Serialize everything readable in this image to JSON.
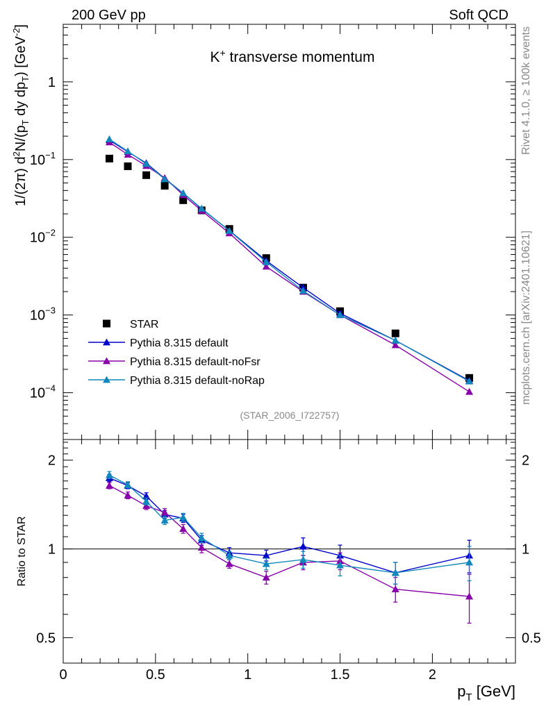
{
  "header": {
    "left": "200 GeV pp",
    "right": "Soft QCD"
  },
  "side_labels": {
    "rivet": "Rivet 4.1.0, ≥ 100k events",
    "mcplots": "mcplots.cern.ch [arXiv:2401.10621]"
  },
  "chart_data": [
    {
      "type": "scatter",
      "panel": "main",
      "title": "K⁺ transverse momentum",
      "xlabel": "",
      "ylabel_parts": {
        "prefix": "1/(2π)",
        "d": "d",
        "two": "2",
        "n_open": "N/(p",
        "t1": "T",
        "mid": " dy dp",
        "t2": "T",
        "close": ") [GeV",
        "minus2": "-2",
        "end": "]"
      },
      "yscale": "log",
      "xlim": [
        0,
        2.45
      ],
      "ylim": [
        2.5e-05,
        5.5
      ],
      "y_ticks": [
        {
          "value": 1,
          "base": "1",
          "exp": ""
        },
        {
          "value": 0.1,
          "base": "10",
          "exp": "−1"
        },
        {
          "value": 0.01,
          "base": "10",
          "exp": "−2"
        },
        {
          "value": 0.001,
          "base": "10",
          "exp": "−3"
        },
        {
          "value": 0.0001,
          "base": "10",
          "exp": "−4"
        }
      ],
      "annotation": "(STAR_2006_I722757)",
      "legend_position": "lower-left",
      "series": [
        {
          "name": "STAR",
          "color": "#000000",
          "marker": "square",
          "line": false,
          "x": [
            0.25,
            0.35,
            0.45,
            0.55,
            0.65,
            0.75,
            0.9,
            1.1,
            1.3,
            1.5,
            1.8,
            2.2
          ],
          "y": [
            0.103,
            0.082,
            0.063,
            0.046,
            0.03,
            0.0222,
            0.0128,
            0.0054,
            0.00225,
            0.00112,
            0.00058,
            0.000155
          ]
        },
        {
          "name": "Pythia 8.315 default",
          "color": "#0000cc",
          "marker": "triangle",
          "line": true,
          "x": [
            0.25,
            0.35,
            0.45,
            0.55,
            0.65,
            0.75,
            0.9,
            1.1,
            1.3,
            1.5,
            1.8,
            2.2
          ],
          "y": [
            0.178,
            0.126,
            0.09,
            0.057,
            0.037,
            0.0232,
            0.0122,
            0.005,
            0.00225,
            0.00105,
            0.00047,
            0.000143
          ]
        },
        {
          "name": "Pythia 8.315 default-noFsr",
          "color": "#8800aa",
          "marker": "triangle",
          "line": true,
          "x": [
            0.25,
            0.35,
            0.45,
            0.55,
            0.65,
            0.75,
            0.9,
            1.1,
            1.3,
            1.5,
            1.8,
            2.2
          ],
          "y": [
            0.167,
            0.116,
            0.083,
            0.058,
            0.035,
            0.022,
            0.0113,
            0.0042,
            0.002,
            0.001,
            0.00041,
            0.000103
          ]
        },
        {
          "name": "Pythia 8.315 default-noRap",
          "color": "#1188bb",
          "marker": "triangle",
          "line": true,
          "x": [
            0.25,
            0.35,
            0.45,
            0.55,
            0.65,
            0.75,
            0.9,
            1.1,
            1.3,
            1.5,
            1.8,
            2.2
          ],
          "y": [
            0.183,
            0.128,
            0.088,
            0.056,
            0.037,
            0.0235,
            0.0121,
            0.0048,
            0.00205,
            0.001,
            0.00047,
            0.00014
          ]
        }
      ]
    },
    {
      "type": "scatter",
      "panel": "ratio",
      "xlabel": "p",
      "xlabel_sub": "T",
      "xlabel_unit": " [GeV]",
      "ylabel": "Ratio to STAR",
      "yscale": "log",
      "xlim": [
        0,
        2.45
      ],
      "ylim": [
        0.41,
        2.35
      ],
      "x_ticks": [
        "0",
        "0.5",
        "1",
        "1.5",
        "2"
      ],
      "y_ticks": [
        "2",
        "1",
        "0.5"
      ],
      "reference_line": 1,
      "series": [
        {
          "name": "Pythia 8.315 default",
          "color": "#0000cc",
          "x": [
            0.25,
            0.35,
            0.45,
            0.55,
            0.65,
            0.75,
            0.9,
            1.1,
            1.3,
            1.5,
            1.8,
            2.2
          ],
          "y": [
            1.74,
            1.64,
            1.51,
            1.31,
            1.27,
            1.07,
            0.97,
            0.95,
            1.02,
            0.95,
            0.83,
            0.95
          ],
          "err": [
            0.05,
            0.04,
            0.04,
            0.04,
            0.04,
            0.04,
            0.04,
            0.04,
            0.07,
            0.08,
            0.07,
            0.12
          ]
        },
        {
          "name": "Pythia 8.315 default-noFsr",
          "color": "#8800aa",
          "x": [
            0.25,
            0.35,
            0.45,
            0.55,
            0.65,
            0.75,
            0.9,
            1.1,
            1.3,
            1.5,
            1.8,
            2.2
          ],
          "y": [
            1.64,
            1.52,
            1.4,
            1.33,
            1.17,
            1.01,
            0.89,
            0.8,
            0.9,
            0.91,
            0.73,
            0.69
          ],
          "err": [
            0.04,
            0.04,
            0.04,
            0.04,
            0.04,
            0.04,
            0.03,
            0.04,
            0.05,
            0.06,
            0.07,
            0.13
          ]
        },
        {
          "name": "Pythia 8.315 default-noRap",
          "color": "#1188bb",
          "x": [
            0.25,
            0.35,
            0.45,
            0.55,
            0.65,
            0.75,
            0.9,
            1.1,
            1.3,
            1.5,
            1.8,
            2.2
          ],
          "y": [
            1.78,
            1.65,
            1.45,
            1.25,
            1.28,
            1.09,
            0.95,
            0.89,
            0.92,
            0.88,
            0.83,
            0.9
          ],
          "err": [
            0.05,
            0.04,
            0.04,
            0.04,
            0.04,
            0.04,
            0.03,
            0.04,
            0.06,
            0.07,
            0.07,
            0.12
          ]
        }
      ]
    }
  ]
}
